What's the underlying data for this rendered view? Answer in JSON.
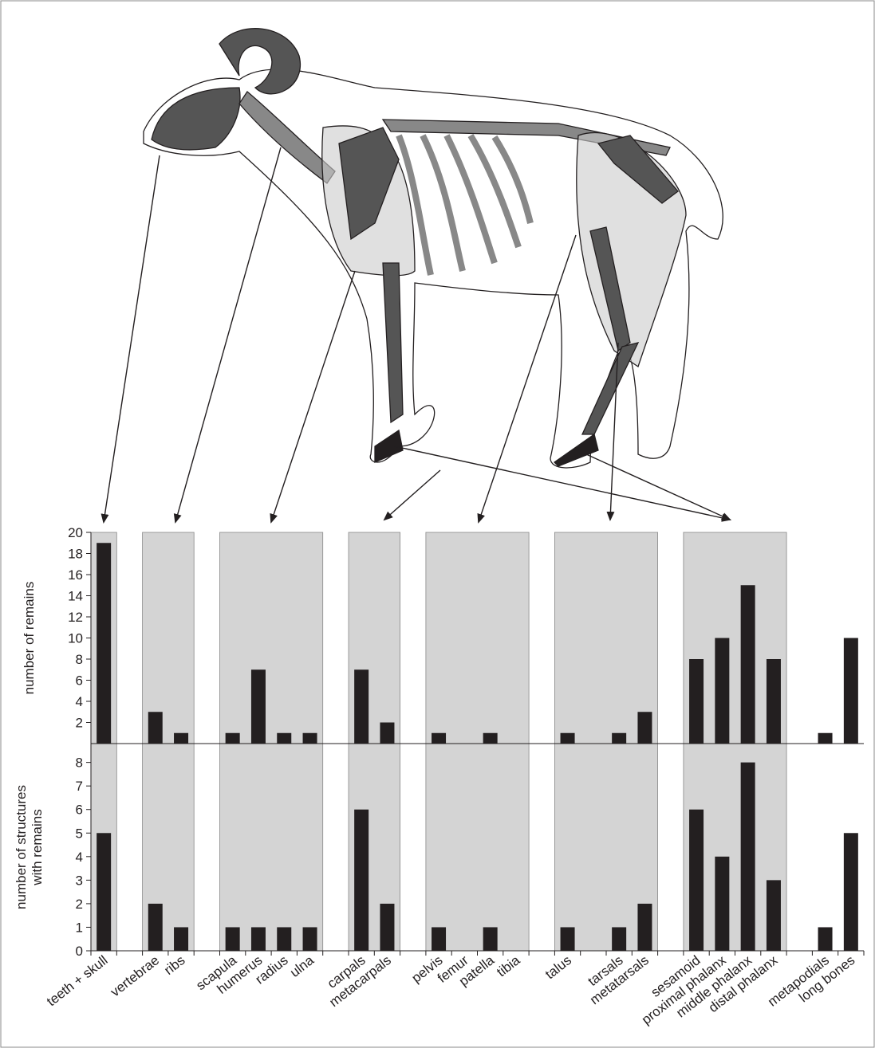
{
  "chart_data": [
    {
      "type": "bar",
      "y_label": "number of remains",
      "color": "#231f20",
      "values": [
        19,
        null,
        3,
        1,
        null,
        1,
        7,
        1,
        1,
        null,
        7,
        2,
        null,
        1,
        0,
        1,
        0,
        null,
        1,
        0,
        1,
        3,
        null,
        8,
        10,
        15,
        8,
        null,
        1,
        10
      ],
      "ylim": [
        0,
        20
      ],
      "yticks": [
        2,
        4,
        6,
        8,
        10,
        12,
        14,
        16,
        18,
        20
      ]
    },
    {
      "type": "bar",
      "y_label": "number of structures with remains",
      "color": "#231f20",
      "categories": [
        "teeth + skull",
        null,
        "vertebrae",
        "ribs",
        null,
        "scapula",
        "humerus",
        "radius",
        "ulna",
        null,
        "carpals",
        "metacarpals",
        null,
        "pelvis",
        "femur",
        "patella",
        "tibia",
        null,
        "talus",
        null,
        "tarsals",
        "metatarsals",
        null,
        "sesamoid",
        "proximal phalanx",
        "middle phalanx",
        "distal phalanx",
        null,
        "metapodials",
        "long bones"
      ],
      "values": [
        5,
        null,
        2,
        1,
        null,
        1,
        1,
        1,
        1,
        null,
        6,
        2,
        null,
        1,
        0,
        1,
        0,
        null,
        1,
        0,
        1,
        2,
        null,
        6,
        4,
        8,
        3,
        null,
        1,
        5
      ],
      "ylim": [
        0,
        8.8
      ],
      "yticks": [
        0,
        1,
        2,
        3,
        4,
        5,
        6,
        7,
        8
      ]
    }
  ]
}
